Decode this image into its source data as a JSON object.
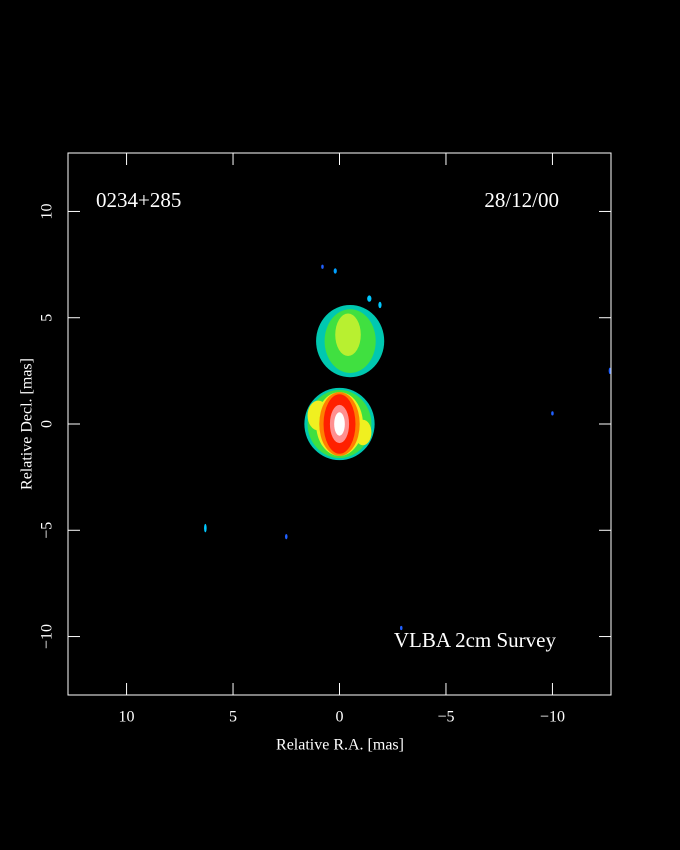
{
  "chart_data": {
    "type": "image",
    "title": "0234+285",
    "date": "28/12/00",
    "annotation": "VLBA 2cm Survey",
    "x_label": "Relative R.A. [mas]",
    "y_label": "Relative Decl. [mas]",
    "xlim": [
      12.75,
      -12.75
    ],
    "ylim": [
      -12.75,
      12.75
    ],
    "xticks": [
      10,
      5,
      0,
      {
        "value": -5,
        "label": "−5"
      },
      {
        "value": -10,
        "label": "−10"
      }
    ],
    "yticks": [
      {
        "value": -10,
        "label": "−10"
      },
      {
        "value": -5,
        "label": "−5"
      },
      0,
      5,
      10
    ],
    "components": [
      {
        "x": -0.5,
        "y": 3.9,
        "width": 3.2,
        "height": 3.4,
        "color": "#00c8b0"
      },
      {
        "x": -0.5,
        "y": 3.9,
        "width": 2.4,
        "height": 3.0,
        "color": "#40e040"
      },
      {
        "x": -0.4,
        "y": 4.2,
        "width": 1.2,
        "height": 2.0,
        "color": "#b8f030"
      },
      {
        "x": 0.0,
        "y": 0.0,
        "width": 3.3,
        "height": 3.4,
        "color": "#00c8b0"
      },
      {
        "x": 0.0,
        "y": 0.0,
        "width": 3.0,
        "height": 3.2,
        "color": "#40e040"
      },
      {
        "x": 1.0,
        "y": 0.4,
        "width": 1.0,
        "height": 1.4,
        "color": "#f0f020"
      },
      {
        "x": -1.1,
        "y": -0.4,
        "width": 0.8,
        "height": 1.2,
        "color": "#f0f020"
      },
      {
        "x": 0.0,
        "y": 0.0,
        "width": 2.2,
        "height": 3.0,
        "color": "#f0f020"
      },
      {
        "x": 0.0,
        "y": 0.0,
        "width": 1.9,
        "height": 3.0,
        "color": "#ff8000"
      },
      {
        "x": 0.0,
        "y": 0.0,
        "width": 1.5,
        "height": 2.8,
        "color": "#ff2000"
      },
      {
        "x": 0.0,
        "y": 0.0,
        "width": 0.9,
        "height": 1.8,
        "color": "#ff9090"
      },
      {
        "x": 0.0,
        "y": 0.0,
        "width": 0.5,
        "height": 1.1,
        "color": "#ffffff"
      },
      {
        "x": 6.3,
        "y": -4.9,
        "width": 0.12,
        "height": 0.4,
        "color": "#00c8ff"
      },
      {
        "x": 2.5,
        "y": -5.3,
        "width": 0.12,
        "height": 0.25,
        "color": "#2060ff"
      },
      {
        "x": -10.0,
        "y": 0.5,
        "width": 0.12,
        "height": 0.2,
        "color": "#2060ff"
      },
      {
        "x": -12.7,
        "y": 2.5,
        "width": 0.12,
        "height": 0.3,
        "color": "#2060ff"
      },
      {
        "x": 0.8,
        "y": 7.4,
        "width": 0.12,
        "height": 0.2,
        "color": "#2060ff"
      },
      {
        "x": 0.2,
        "y": 7.2,
        "width": 0.15,
        "height": 0.25,
        "color": "#00a0ff"
      },
      {
        "x": -1.4,
        "y": 5.9,
        "width": 0.2,
        "height": 0.3,
        "color": "#00c8ff"
      },
      {
        "x": -1.9,
        "y": 5.6,
        "width": 0.15,
        "height": 0.3,
        "color": "#00c8ff"
      },
      {
        "x": -2.9,
        "y": -9.6,
        "width": 0.12,
        "height": 0.2,
        "color": "#2060ff"
      }
    ]
  }
}
